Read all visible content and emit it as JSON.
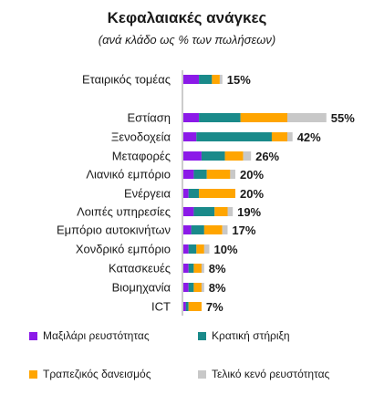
{
  "chart_data": {
    "type": "bar",
    "stacked": true,
    "orientation": "horizontal",
    "title": "Κεφαλαιακές ανάγκες",
    "subtitle": "(ανά κλάδο ως % των πωλήσεων)",
    "xlim": [
      0,
      60
    ],
    "grid": false,
    "legend_position": "bottom",
    "categories": [
      "Εταιρικός τομέας",
      "Εστίαση",
      "Ξενοδοχεία",
      "Μεταφορές",
      "Λιανικό εμπόριο",
      "Ενέργεια",
      "Λοιπές υπηρεσίες",
      "Εμπόριο αυτοκινήτων",
      "Χονδρικό εμπόριο",
      "Κατασκευές",
      "Βιομηχανία",
      "ICT"
    ],
    "totals_labels": [
      "15%",
      "55%",
      "42%",
      "26%",
      "20%",
      "20%",
      "19%",
      "17%",
      "10%",
      "8%",
      "8%",
      "7%"
    ],
    "series": [
      {
        "name": "Μαξιλάρι ρευστότητας",
        "color": "#8b1ae8",
        "values": [
          6,
          6,
          5,
          7,
          4,
          2,
          4,
          3,
          2,
          2,
          2,
          1
        ]
      },
      {
        "name": "Κρατική στήριξη",
        "color": "#1a8a8a",
        "values": [
          5,
          16,
          29,
          9,
          5,
          4,
          8,
          5,
          3,
          2,
          2,
          1
        ]
      },
      {
        "name": "Τραπεζικός δανεισμός",
        "color": "#ffa500",
        "values": [
          3,
          18,
          6,
          7,
          9,
          14,
          5,
          7,
          3,
          3,
          3,
          5
        ]
      },
      {
        "name": "Τελικό κενό ρευστότητας",
        "color": "#c8c8c8",
        "values": [
          1,
          15,
          2,
          3,
          2,
          0,
          2,
          2,
          2,
          1,
          1,
          0
        ]
      }
    ]
  }
}
